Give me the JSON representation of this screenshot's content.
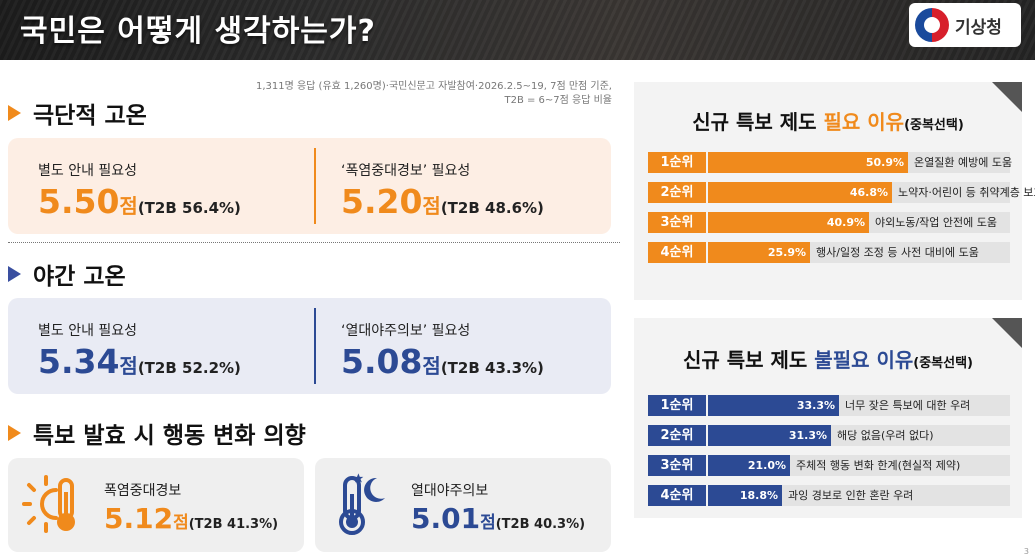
{
  "header": {
    "title": "국민은 어떻게 생각하는가?",
    "logo_text": "기상청"
  },
  "note": {
    "line1": "1,311명 응답 (유효 1,260명)·국민신문고 자발참여·2026.2.5~19, 7점 만점 기준,",
    "line2": "T2B = 6~7점 응답 비율"
  },
  "sections": {
    "extreme_heat": {
      "title": "극단적 고온",
      "left": {
        "label": "별도 안내 필요성",
        "score": "5.50",
        "unit": "점",
        "t2b": "(T2B 56.4%)"
      },
      "right": {
        "label": "‘폭염중대경보’ 필요성",
        "score": "5.20",
        "unit": "점",
        "t2b": "(T2B 48.6%)"
      }
    },
    "night_heat": {
      "title": "야간 고온",
      "left": {
        "label": "별도 안내 필요성",
        "score": "5.34",
        "unit": "점",
        "t2b": "(T2B 52.2%)"
      },
      "right": {
        "label": "‘열대야주의보’ 필요성",
        "score": "5.08",
        "unit": "점",
        "t2b": "(T2B 43.3%)"
      }
    },
    "behavior": {
      "title": "특보 발효 시 행동 변화 의향",
      "left": {
        "label": "폭염중대경보",
        "score": "5.12",
        "unit": "점",
        "t2b": "(T2B 41.3%)",
        "icon": "sun-thermometer-icon"
      },
      "right": {
        "label": "열대야주의보",
        "score": "5.01",
        "unit": "점",
        "t2b": "(T2B 40.3%)",
        "icon": "moon-thermometer-icon"
      }
    }
  },
  "need_panel": {
    "title_a": "신규 특보 제도 ",
    "title_hl": "필요 이유",
    "title_b": "(중복선택)",
    "rows": [
      {
        "rank": "1순위",
        "pct": "50.9%",
        "value": 50.9,
        "desc": "온열질환 예방에 도움"
      },
      {
        "rank": "2순위",
        "pct": "46.8%",
        "value": 46.8,
        "desc": "노약자·어린이 등 취약계층 보호에 도움"
      },
      {
        "rank": "3순위",
        "pct": "40.9%",
        "value": 40.9,
        "desc": "야외노동/작업 안전에 도움"
      },
      {
        "rank": "4순위",
        "pct": "25.9%",
        "value": 25.9,
        "desc": "행사/일정 조정 등 사전 대비에 도움"
      }
    ]
  },
  "noneed_panel": {
    "title_a": "신규 특보 제도 ",
    "title_hl": "불필요 이유",
    "title_b": "(중복선택)",
    "rows": [
      {
        "rank": "1순위",
        "pct": "33.3%",
        "value": 33.3,
        "desc": "너무 잦은 특보에 대한 우려"
      },
      {
        "rank": "2순위",
        "pct": "31.3%",
        "value": 31.3,
        "desc": "해당 없음(우려 없다)"
      },
      {
        "rank": "3순위",
        "pct": "21.0%",
        "value": 21.0,
        "desc": "주체적 행동 변화 한계(현실적 제약)"
      },
      {
        "rank": "4순위",
        "pct": "18.8%",
        "value": 18.8,
        "desc": "과잉 경보로 인한 혼란 우려"
      }
    ]
  },
  "colors": {
    "orange": "#f08a1c",
    "blue": "#2c4a94",
    "peach": "#fdeee4",
    "lavender": "#e9ebf4"
  },
  "page_number": "3"
}
